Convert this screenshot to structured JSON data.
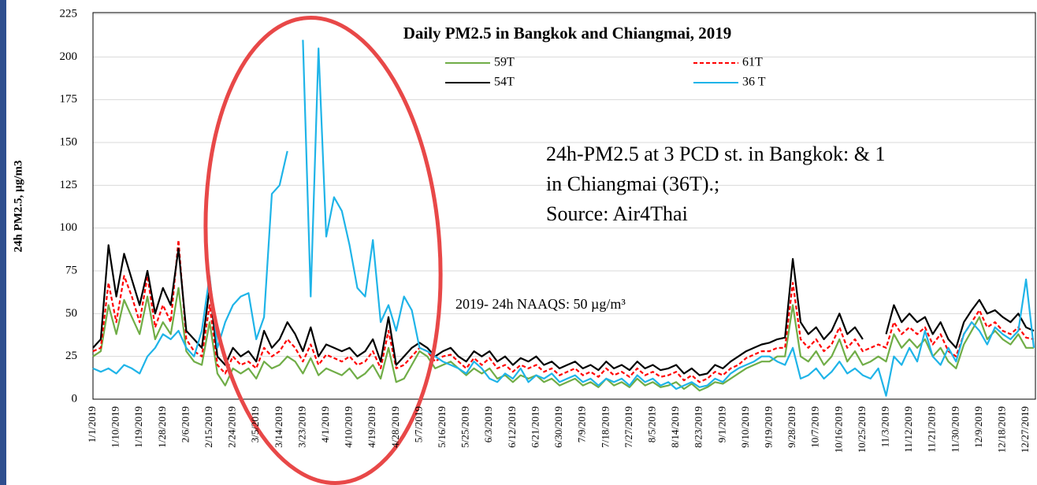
{
  "chart_data": {
    "type": "line",
    "title": "Daily PM2.5 in Bangkok and Chiangmai, 2019",
    "y_label": "24h PM2.5, µg/m3",
    "annotations": [
      "24h-PM2.5 at 3 PCD st. in Bangkok: & 1",
      "in Chiangmai (36T).;",
      "Source: Air4Thai",
      "2019- 24h NAAQS: 50 µg/m³"
    ],
    "categories": [
      "1/1/2019",
      null,
      null,
      "1/10/2019",
      null,
      null,
      "1/19/2019",
      null,
      null,
      "1/28/2019",
      null,
      null,
      "2/6/2019",
      null,
      null,
      "2/15/2019",
      null,
      null,
      "2/24/2019",
      null,
      null,
      "3/5/2019",
      null,
      null,
      "3/14/2019",
      null,
      null,
      "3/23/2019",
      null,
      null,
      "4/1/2019",
      null,
      null,
      "4/10/2019",
      null,
      null,
      "4/19/2019",
      null,
      null,
      "4/28/2019",
      null,
      null,
      "5/7/2019",
      null,
      null,
      "5/16/2019",
      null,
      null,
      "5/25/2019",
      null,
      null,
      "6/3/2019",
      null,
      null,
      "6/12/2019",
      null,
      null,
      "6/21/2019",
      null,
      null,
      "6/30/2019",
      null,
      null,
      "7/9/2019",
      null,
      null,
      "7/18/2019",
      null,
      null,
      "7/27/2019",
      null,
      null,
      "8/5/2019",
      null,
      null,
      "8/14/2019",
      null,
      null,
      "8/23/2019",
      null,
      null,
      "9/1/2019",
      null,
      null,
      "9/10/2019",
      null,
      null,
      "9/19/2019",
      null,
      null,
      "9/28/2019",
      null,
      null,
      "10/7/2019",
      null,
      null,
      "10/16/2019",
      null,
      null,
      "10/25/2019",
      null,
      null,
      "11/3/2019",
      null,
      null,
      "11/12/2019",
      null,
      null,
      "11/21/2019",
      null,
      null,
      "11/30/2019",
      null,
      null,
      "12/9/2019",
      null,
      null,
      "12/18/2019",
      null,
      null,
      "12/27/2019",
      null
    ],
    "series": [
      {
        "name": "59T",
        "color": "#70ad47",
        "dash": false,
        "values": [
          25,
          28,
          55,
          38,
          58,
          48,
          38,
          60,
          35,
          45,
          38,
          65,
          28,
          22,
          20,
          45,
          15,
          8,
          18,
          15,
          18,
          12,
          22,
          18,
          20,
          25,
          22,
          15,
          24,
          14,
          18,
          16,
          14,
          18,
          12,
          15,
          20,
          12,
          30,
          10,
          12,
          20,
          28,
          25,
          18,
          20,
          22,
          18,
          14,
          18,
          15,
          18,
          12,
          14,
          10,
          14,
          12,
          14,
          10,
          12,
          8,
          10,
          12,
          8,
          10,
          7,
          12,
          8,
          10,
          7,
          12,
          8,
          10,
          7,
          8,
          10,
          6,
          9,
          5,
          7,
          10,
          9,
          12,
          15,
          18,
          20,
          22,
          22,
          25,
          25,
          55,
          25,
          22,
          28,
          20,
          25,
          35,
          22,
          28,
          20,
          22,
          25,
          22,
          38,
          30,
          35,
          30,
          35,
          25,
          30,
          22,
          18,
          32,
          40,
          48,
          35,
          40,
          35,
          32,
          38,
          30,
          30
        ]
      },
      {
        "name": "61T",
        "color": "#ff0000",
        "dash": true,
        "values": [
          28,
          30,
          68,
          45,
          72,
          60,
          45,
          72,
          42,
          55,
          45,
          93,
          35,
          28,
          25,
          55,
          20,
          15,
          25,
          20,
          22,
          18,
          30,
          25,
          28,
          35,
          30,
          22,
          32,
          20,
          26,
          24,
          22,
          25,
          20,
          22,
          28,
          18,
          40,
          18,
          20,
          25,
          30,
          28,
          22,
          25,
          26,
          22,
          18,
          24,
          20,
          24,
          18,
          20,
          16,
          20,
          18,
          20,
          16,
          18,
          14,
          16,
          18,
          14,
          16,
          13,
          18,
          14,
          16,
          13,
          18,
          14,
          16,
          13,
          14,
          16,
          11,
          14,
          10,
          12,
          16,
          14,
          18,
          20,
          24,
          26,
          28,
          28,
          30,
          30,
          68,
          35,
          30,
          35,
          28,
          32,
          42,
          30,
          35,
          28,
          30,
          32,
          30,
          45,
          38,
          42,
          38,
          42,
          32,
          38,
          28,
          25,
          38,
          45,
          52,
          42,
          45,
          40,
          38,
          42,
          36,
          35
        ]
      },
      {
        "name": "54T",
        "color": "#000000",
        "dash": false,
        "values": [
          30,
          35,
          90,
          60,
          85,
          70,
          55,
          75,
          50,
          65,
          55,
          88,
          40,
          35,
          30,
          65,
          25,
          20,
          30,
          25,
          28,
          22,
          40,
          30,
          35,
          45,
          38,
          28,
          42,
          25,
          32,
          30,
          28,
          30,
          25,
          28,
          35,
          22,
          48,
          20,
          25,
          30,
          33,
          30,
          25,
          28,
          30,
          25,
          22,
          28,
          25,
          28,
          22,
          25,
          20,
          24,
          22,
          25,
          20,
          22,
          18,
          20,
          22,
          18,
          20,
          17,
          22,
          18,
          20,
          17,
          22,
          18,
          20,
          17,
          18,
          20,
          15,
          18,
          14,
          15,
          20,
          18,
          22,
          25,
          28,
          30,
          32,
          33,
          35,
          36,
          82,
          45,
          38,
          42,
          35,
          40,
          50,
          38,
          42,
          35,
          null,
          null,
          38,
          55,
          45,
          50,
          45,
          48,
          38,
          45,
          35,
          30,
          45,
          52,
          58,
          50,
          52,
          48,
          45,
          50,
          42,
          40
        ]
      },
      {
        "name": "36 T",
        "color": "#1fb4e8",
        "dash": false,
        "values": [
          18,
          16,
          18,
          15,
          20,
          18,
          15,
          25,
          30,
          38,
          35,
          40,
          30,
          25,
          40,
          72,
          30,
          45,
          55,
          60,
          62,
          35,
          48,
          120,
          125,
          145,
          null,
          210,
          60,
          205,
          95,
          118,
          110,
          90,
          65,
          60,
          93,
          45,
          55,
          40,
          60,
          52,
          30,
          28,
          25,
          22,
          20,
          18,
          15,
          22,
          18,
          12,
          10,
          15,
          12,
          18,
          10,
          14,
          12,
          15,
          10,
          12,
          14,
          10,
          12,
          8,
          12,
          10,
          12,
          8,
          14,
          10,
          12,
          8,
          10,
          6,
          8,
          10,
          7,
          8,
          12,
          10,
          15,
          18,
          20,
          22,
          25,
          25,
          22,
          20,
          30,
          12,
          14,
          18,
          12,
          16,
          22,
          15,
          18,
          14,
          12,
          18,
          2,
          25,
          20,
          30,
          22,
          40,
          25,
          20,
          30,
          22,
          38,
          45,
          40,
          32,
          42,
          38,
          35,
          40,
          70,
          30
        ]
      }
    ],
    "ylim": [
      0,
      225
    ],
    "yticks": [
      0,
      25,
      50,
      75,
      100,
      125,
      150,
      175,
      200,
      225
    ],
    "grid": true
  }
}
